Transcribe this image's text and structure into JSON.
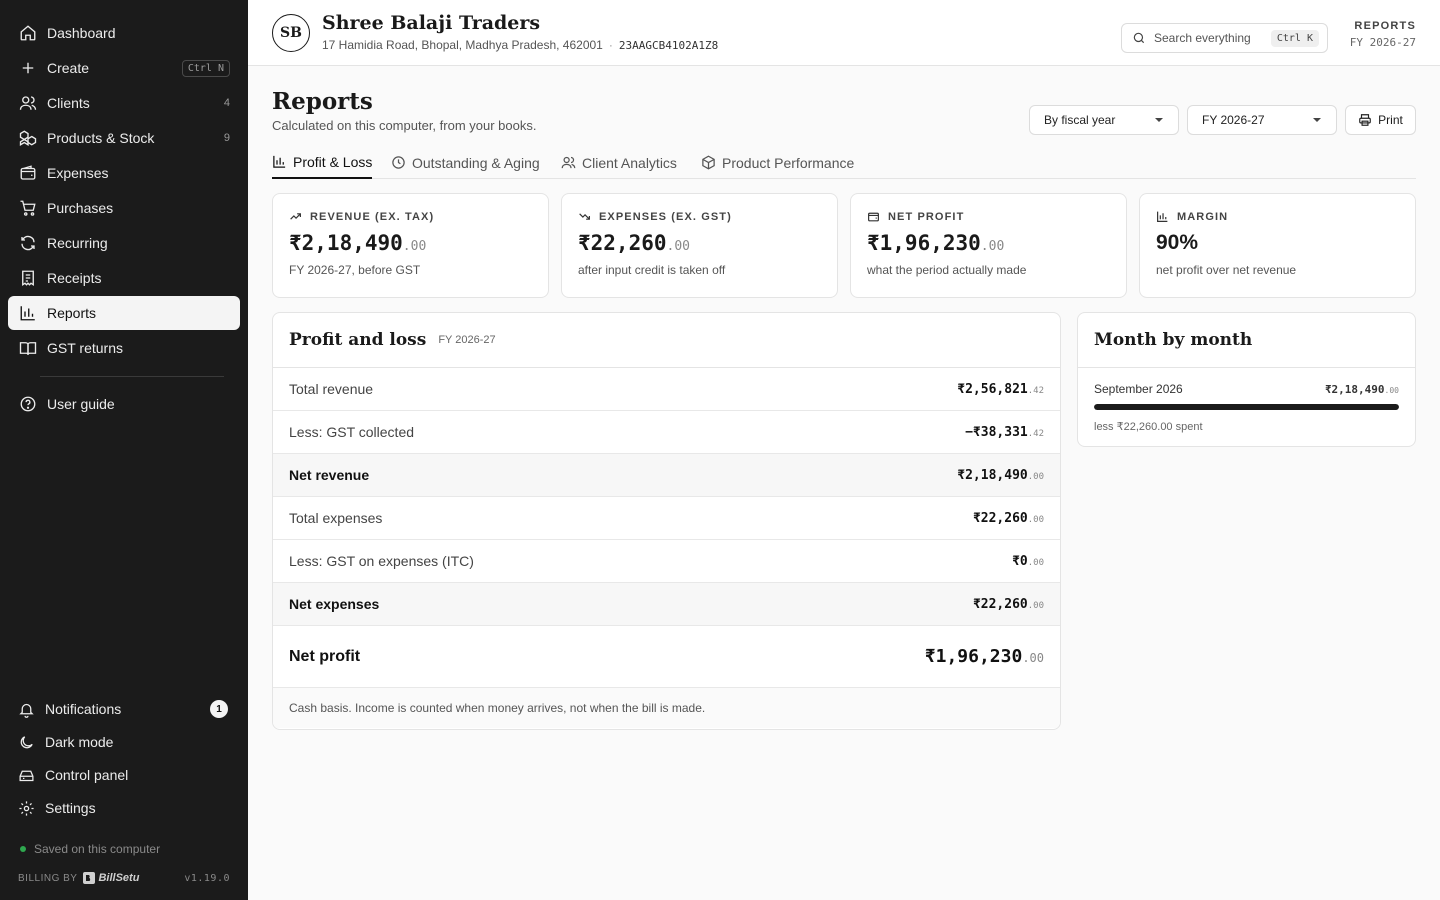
{
  "sidebar": {
    "items": [
      {
        "label": "Dashboard",
        "icon": "home-icon"
      },
      {
        "label": "Create",
        "icon": "plus-icon",
        "shortcut": "Ctrl N"
      },
      {
        "label": "Clients",
        "icon": "users-icon",
        "count": "4"
      },
      {
        "label": "Products & Stock",
        "icon": "boxes-icon",
        "count": "9"
      },
      {
        "label": "Expenses",
        "icon": "wallet-icon"
      },
      {
        "label": "Purchases",
        "icon": "cart-icon"
      },
      {
        "label": "Recurring",
        "icon": "refresh-icon"
      },
      {
        "label": "Receipts",
        "icon": "receipt-icon"
      },
      {
        "label": "Reports",
        "icon": "bar-chart-icon",
        "active": true
      },
      {
        "label": "GST returns",
        "icon": "book-icon"
      }
    ],
    "guide": {
      "label": "User guide",
      "icon": "help-circle-icon"
    },
    "bottom": [
      {
        "label": "Notifications",
        "icon": "bell-icon",
        "badge": "1"
      },
      {
        "label": "Dark mode",
        "icon": "moon-icon"
      },
      {
        "label": "Control panel",
        "icon": "drive-icon"
      },
      {
        "label": "Settings",
        "icon": "gear-icon"
      }
    ],
    "saved_status": "Saved on this computer",
    "billing_by": "BILLING BY",
    "brand": "BillSetu",
    "version": "v1.19.0"
  },
  "header": {
    "avatar": "SB",
    "business_name": "Shree Balaji Traders",
    "address": "17 Hamidia Road, Bhopal, Madhya Pradesh, 462001",
    "separator": "·",
    "gstin": "23AAGCB4102A1Z8",
    "search_label": "Search everything",
    "search_shortcut": "Ctrl K",
    "section": "REPORTS",
    "period": "FY 2026-27"
  },
  "page": {
    "title": "Reports",
    "subtitle": "Calculated on this computer, from your books.",
    "period_mode": "By fiscal year",
    "fiscal_year": "FY 2026-27",
    "print_label": "Print"
  },
  "tabs": [
    {
      "label": "Profit & Loss",
      "icon": "bar-chart-icon",
      "active": true
    },
    {
      "label": "Outstanding & Aging",
      "icon": "clock-icon"
    },
    {
      "label": "Client Analytics",
      "icon": "users-icon"
    },
    {
      "label": "Product Performance",
      "icon": "package-icon"
    }
  ],
  "stats": [
    {
      "caption": "REVENUE (EX. TAX)",
      "icon": "trending-up-icon",
      "value": "₹2,18,490",
      "decimals": ".00",
      "note": "FY 2026-27, before GST"
    },
    {
      "caption": "EXPENSES (EX. GST)",
      "icon": "trending-down-icon",
      "value": "₹22,260",
      "decimals": ".00",
      "note": "after input credit is taken off"
    },
    {
      "caption": "NET PROFIT",
      "icon": "wallet-icon",
      "value": "₹1,96,230",
      "decimals": ".00",
      "note": "what the period actually made"
    },
    {
      "caption": "MARGIN",
      "icon": "bar-chart-icon",
      "value": "90%",
      "decimals": "",
      "note": "net profit over net revenue"
    }
  ],
  "pl": {
    "title": "Profit and loss",
    "period": "FY 2026-27",
    "rows": [
      {
        "label": "Total revenue",
        "amount": "₹2,56,821",
        "decimals": ".42",
        "bold": false
      },
      {
        "label": "Less: GST collected",
        "amount": "−₹38,331",
        "decimals": ".42",
        "bold": false
      },
      {
        "label": "Net revenue",
        "amount": "₹2,18,490",
        "decimals": ".00",
        "bold": true
      },
      {
        "label": "Total expenses",
        "amount": "₹22,260",
        "decimals": ".00",
        "bold": false
      },
      {
        "label": "Less: GST on expenses (ITC)",
        "amount": "₹0",
        "decimals": ".00",
        "bold": false
      },
      {
        "label": "Net expenses",
        "amount": "₹22,260",
        "decimals": ".00",
        "bold": true
      }
    ],
    "total": {
      "label": "Net profit",
      "amount": "₹1,96,230",
      "decimals": ".00"
    },
    "footnote": "Cash basis. Income is counted when money arrives, not when the bill is made."
  },
  "monthly": {
    "title": "Month by month",
    "months": [
      {
        "label": "September 2026",
        "amount": "₹2,18,490",
        "decimals": ".00",
        "bar_fraction": 1.0,
        "spent": "less ₹22,260.00 spent"
      }
    ]
  },
  "colors": {
    "sidebar_bg": "#1b1b1b",
    "accent": "#111111",
    "saved_dot": "#2fa84f"
  }
}
